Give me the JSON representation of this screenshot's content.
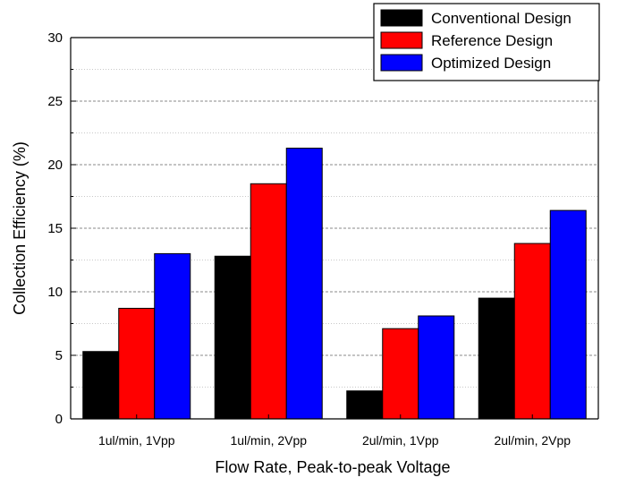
{
  "chart_data": {
    "type": "bar",
    "title": "",
    "xlabel": "Flow Rate, Peak-to-peak Voltage",
    "ylabel": "Collection Efficiency (%)",
    "ylim": [
      0,
      30
    ],
    "yticks": [
      "0",
      "5",
      "10",
      "15",
      "20",
      "25",
      "30"
    ],
    "ytick_values": [
      0,
      5,
      10,
      15,
      20,
      25,
      30
    ],
    "grid": true,
    "legend_position": "top-right",
    "categories": [
      "1ul/min, 1Vpp",
      "1ul/min, 2Vpp",
      "2ul/min, 1Vpp",
      "2ul/min, 2Vpp"
    ],
    "series": [
      {
        "name": "Conventional Design",
        "color": "#000000",
        "values": [
          5.3,
          12.8,
          2.2,
          9.5
        ]
      },
      {
        "name": "Reference Design",
        "color": "#ff0000",
        "values": [
          8.7,
          18.5,
          7.1,
          13.8
        ]
      },
      {
        "name": "Optimized Design",
        "color": "#0000ff",
        "values": [
          13.0,
          21.3,
          8.1,
          16.4
        ]
      }
    ]
  }
}
